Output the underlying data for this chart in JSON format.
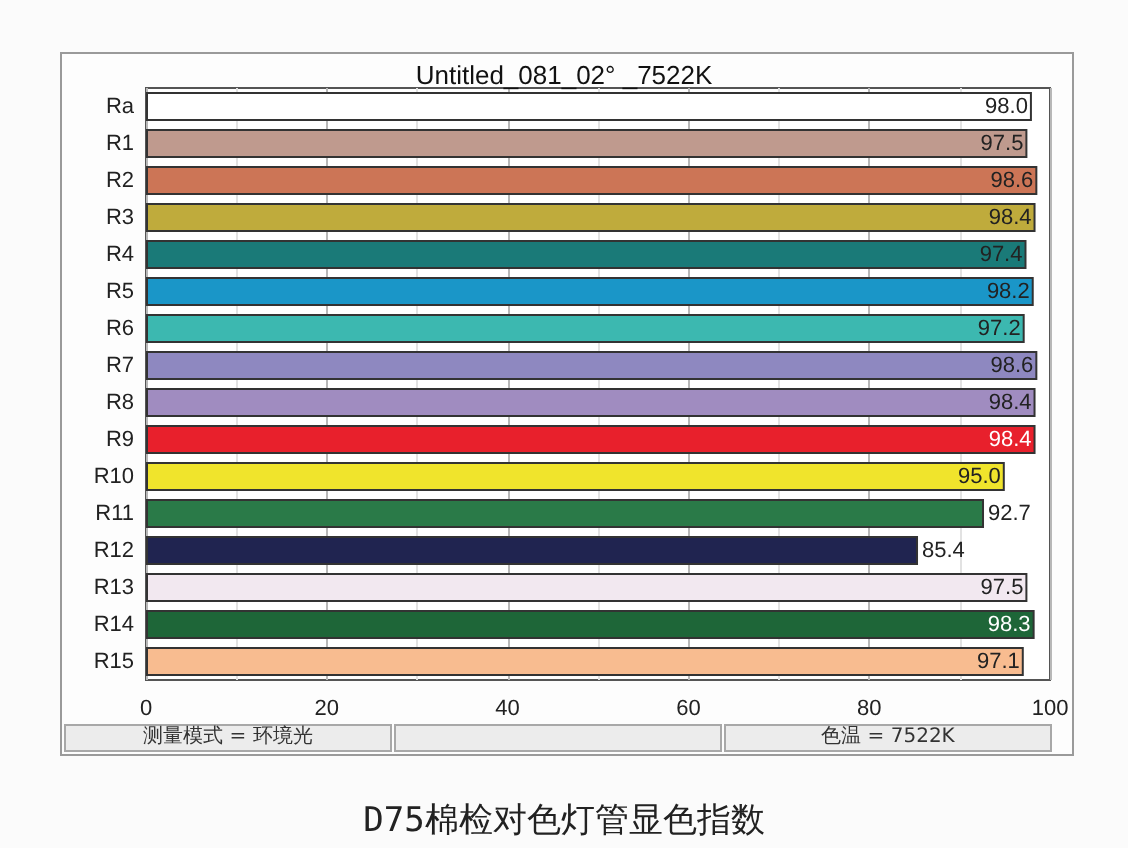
{
  "chart_data": {
    "type": "bar",
    "orientation": "horizontal",
    "title": "Untitled_081_02° _7522K",
    "subtitle": "D75棉检对色灯管显色指数",
    "annotations": [
      "测量模式 = 环境光",
      "色温 = 7522K"
    ],
    "categories": [
      "Ra",
      "R1",
      "R2",
      "R3",
      "R4",
      "R5",
      "R6",
      "R7",
      "R8",
      "R9",
      "R10",
      "R11",
      "R12",
      "R13",
      "R14",
      "R15"
    ],
    "values": [
      98.0,
      97.5,
      98.6,
      98.4,
      97.4,
      98.2,
      97.2,
      98.6,
      98.4,
      98.4,
      95.0,
      92.7,
      85.4,
      97.5,
      98.3,
      97.1
    ],
    "value_labels": [
      "98.0",
      "97.5",
      "98.6",
      "98.4",
      "97.4",
      "98.2",
      "97.2",
      "98.6",
      "98.4",
      "98.4",
      "95.0",
      "92.7",
      "85.4",
      "97.5",
      "98.3",
      "97.1"
    ],
    "colors": [
      "#ffffff",
      "#bf9a8e",
      "#cc7556",
      "#bfab3c",
      "#1a7a78",
      "#1a96c8",
      "#3cb8b0",
      "#8e88c0",
      "#a08cc0",
      "#e8202c",
      "#f0e42c",
      "#2a7a48",
      "#202450",
      "#f2e8f0",
      "#1e6638",
      "#f8bc90"
    ],
    "xlim": [
      0,
      100
    ],
    "xticks": [
      0,
      {
        "value": 10,
        "label": null
      },
      20,
      {
        "value": 30,
        "label": null
      },
      40,
      {
        "value": 50,
        "label": null
      },
      60,
      {
        "value": 70,
        "label": null
      },
      80,
      {
        "value": 90,
        "label": null
      },
      100
    ],
    "grid": "x"
  }
}
